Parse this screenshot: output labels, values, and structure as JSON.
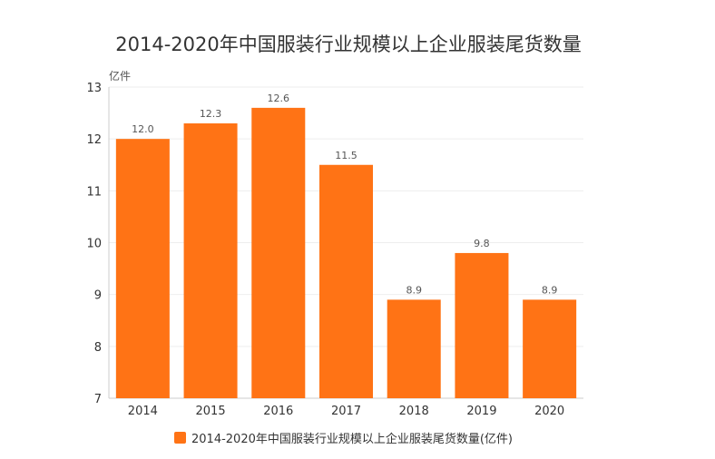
{
  "chart_data": {
    "type": "bar",
    "title": "2014-2020年中国服装行业规模以上企业服装尾货数量",
    "ylabel": "亿件",
    "xlabel": "",
    "categories": [
      "2014",
      "2015",
      "2016",
      "2017",
      "2018",
      "2019",
      "2020"
    ],
    "series": [
      {
        "name": "2014-2020年中国服装行业规模以上企业服装尾货数量(亿件)",
        "values": [
          12.0,
          12.3,
          12.6,
          11.5,
          8.9,
          9.8,
          8.9
        ],
        "labels": [
          "12.0",
          "12.3",
          "12.6",
          "11.5",
          "8.9",
          "9.8",
          "8.9"
        ],
        "color": "#ff7315"
      }
    ],
    "ylim": [
      7,
      13
    ],
    "yticks": [
      7,
      8,
      9,
      10,
      11,
      12,
      13
    ],
    "grid": true,
    "legend": "bottom-center"
  }
}
